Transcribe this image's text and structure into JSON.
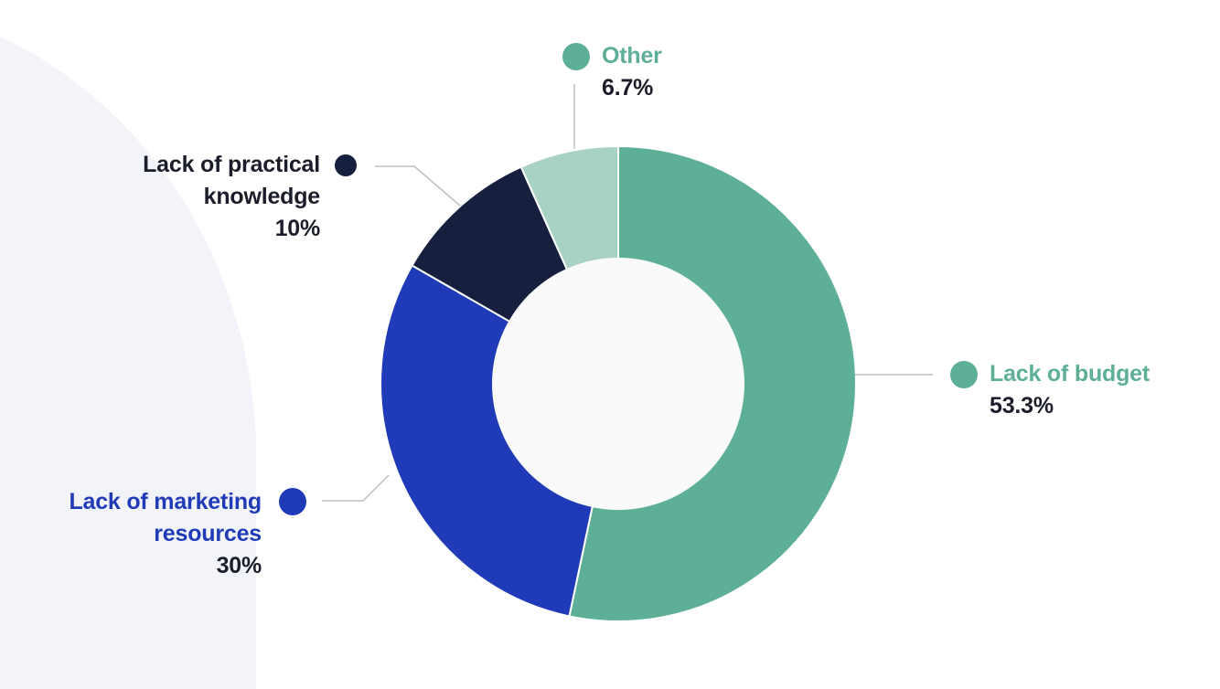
{
  "chart_data": {
    "type": "pie",
    "variant": "donut",
    "title": "",
    "slices": [
      {
        "label": "Lack of budget",
        "value": 53.3,
        "value_label": "53.3%",
        "color": "#5daf98",
        "label_color": "#5daf98"
      },
      {
        "label": "Lack of marketing resources",
        "value": 30,
        "value_label": "30%",
        "color": "#1f3bb7",
        "label_color": "#1f3bb7"
      },
      {
        "label": "Lack of practical knowledge",
        "value": 10,
        "value_label": "10%",
        "color": "#161f3e",
        "label_color": "#1b1d2a"
      },
      {
        "label": "Other",
        "value": 6.7,
        "value_label": "6.7%",
        "color": "#a8d2c3",
        "label_color": "#5daf98"
      }
    ],
    "legend_placement": "callouts around chart"
  },
  "colors": {
    "background": "#ffffff",
    "backdrop_shape": "#f2f4fa",
    "donut_hole": "#fafafa",
    "leader_line": "#bfbfbf",
    "percent_text": "#1b1d2a"
  }
}
